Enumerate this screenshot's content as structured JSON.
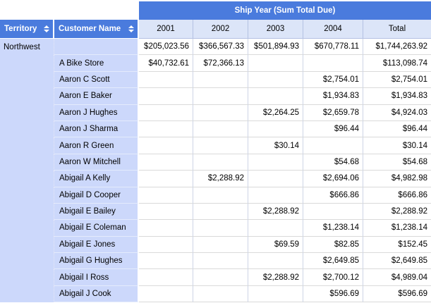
{
  "table": {
    "banner": "Ship Year (Sum Total Due)",
    "column_headers": {
      "territory": "Territory",
      "customer": "Customer Name"
    },
    "year_columns": [
      "2001",
      "2002",
      "2003",
      "2004",
      "Total"
    ],
    "rows": [
      {
        "territory": "Northwest",
        "customer": "",
        "values": [
          "$205,023.56",
          "$366,567.33",
          "$501,894.93",
          "$670,778.11",
          "$1,744,263.92"
        ]
      },
      {
        "territory": "",
        "customer": "A Bike Store",
        "values": [
          "$40,732.61",
          "$72,366.13",
          "",
          "",
          "$113,098.74"
        ]
      },
      {
        "territory": "",
        "customer": "Aaron C Scott",
        "values": [
          "",
          "",
          "",
          "$2,754.01",
          "$2,754.01"
        ]
      },
      {
        "territory": "",
        "customer": "Aaron E Baker",
        "values": [
          "",
          "",
          "",
          "$1,934.83",
          "$1,934.83"
        ]
      },
      {
        "territory": "",
        "customer": "Aaron J Hughes",
        "values": [
          "",
          "",
          "$2,264.25",
          "$2,659.78",
          "$4,924.03"
        ]
      },
      {
        "territory": "",
        "customer": "Aaron J Sharma",
        "values": [
          "",
          "",
          "",
          "$96.44",
          "$96.44"
        ]
      },
      {
        "territory": "",
        "customer": "Aaron R Green",
        "values": [
          "",
          "",
          "$30.14",
          "",
          "$30.14"
        ]
      },
      {
        "territory": "",
        "customer": "Aaron W Mitchell",
        "values": [
          "",
          "",
          "",
          "$54.68",
          "$54.68"
        ]
      },
      {
        "territory": "",
        "customer": "Abigail A Kelly",
        "values": [
          "",
          "$2,288.92",
          "",
          "$2,694.06",
          "$4,982.98"
        ]
      },
      {
        "territory": "",
        "customer": "Abigail D Cooper",
        "values": [
          "",
          "",
          "",
          "$666.86",
          "$666.86"
        ]
      },
      {
        "territory": "",
        "customer": "Abigail E Bailey",
        "values": [
          "",
          "",
          "$2,288.92",
          "",
          "$2,288.92"
        ]
      },
      {
        "territory": "",
        "customer": "Abigail E Coleman",
        "values": [
          "",
          "",
          "",
          "$1,238.14",
          "$1,238.14"
        ]
      },
      {
        "territory": "",
        "customer": "Abigail E Jones",
        "values": [
          "",
          "",
          "$69.59",
          "$82.85",
          "$152.45"
        ]
      },
      {
        "territory": "",
        "customer": "Abigail G Hughes",
        "values": [
          "",
          "",
          "",
          "$2,649.85",
          "$2,649.85"
        ]
      },
      {
        "territory": "",
        "customer": "Abigail I Ross",
        "values": [
          "",
          "",
          "$2,288.92",
          "$2,700.12",
          "$4,989.04"
        ]
      },
      {
        "territory": "",
        "customer": "Abigail J Cook",
        "values": [
          "",
          "",
          "",
          "$596.69",
          "$596.69"
        ]
      }
    ]
  },
  "colors": {
    "header_blue": "#4a7bdd",
    "year_header_bg": "#dce5f8",
    "row_header_bg": "#ccd8fb",
    "cell_bg": "#ffffff",
    "text": "#000000",
    "header_text": "#ffffff"
  }
}
